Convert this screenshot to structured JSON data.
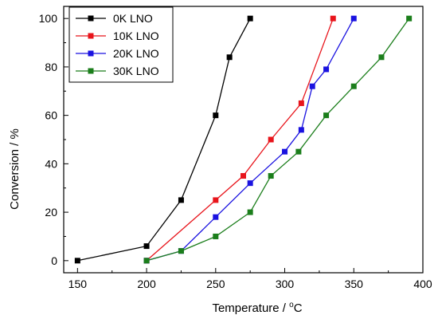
{
  "chart_data": {
    "type": "line",
    "title": "",
    "xlabel_main": "Temperature / ",
    "xlabel_unit_sup": "o",
    "xlabel_unit": "C",
    "ylabel": "Conversion / %",
    "xlim": [
      140,
      400
    ],
    "ylim": [
      -5,
      105
    ],
    "xticks": [
      150,
      200,
      250,
      300,
      350,
      400
    ],
    "yticks": [
      0,
      20,
      40,
      60,
      80,
      100
    ],
    "grid": false,
    "legend_position": "top-left",
    "series": [
      {
        "name": "0K LNO",
        "color": "#000000",
        "x": [
          150,
          200,
          225,
          250,
          260,
          275
        ],
        "y": [
          0,
          6,
          25,
          60,
          84,
          100
        ]
      },
      {
        "name": "10K LNO",
        "color": "#e8141b",
        "x": [
          200,
          250,
          270,
          290,
          312,
          335
        ],
        "y": [
          0,
          25,
          35,
          50,
          65,
          100
        ]
      },
      {
        "name": "20K LNO",
        "color": "#1a12e0",
        "x": [
          200,
          225,
          250,
          275,
          300,
          312,
          320,
          330,
          350
        ],
        "y": [
          0,
          4,
          18,
          32,
          45,
          54,
          72,
          79,
          100
        ]
      },
      {
        "name": "30K LNO",
        "color": "#1b7e1b",
        "x": [
          200,
          225,
          250,
          275,
          290,
          310,
          330,
          350,
          370,
          390
        ],
        "y": [
          0,
          4,
          10,
          20,
          35,
          45,
          60,
          72,
          84,
          100
        ]
      }
    ]
  }
}
